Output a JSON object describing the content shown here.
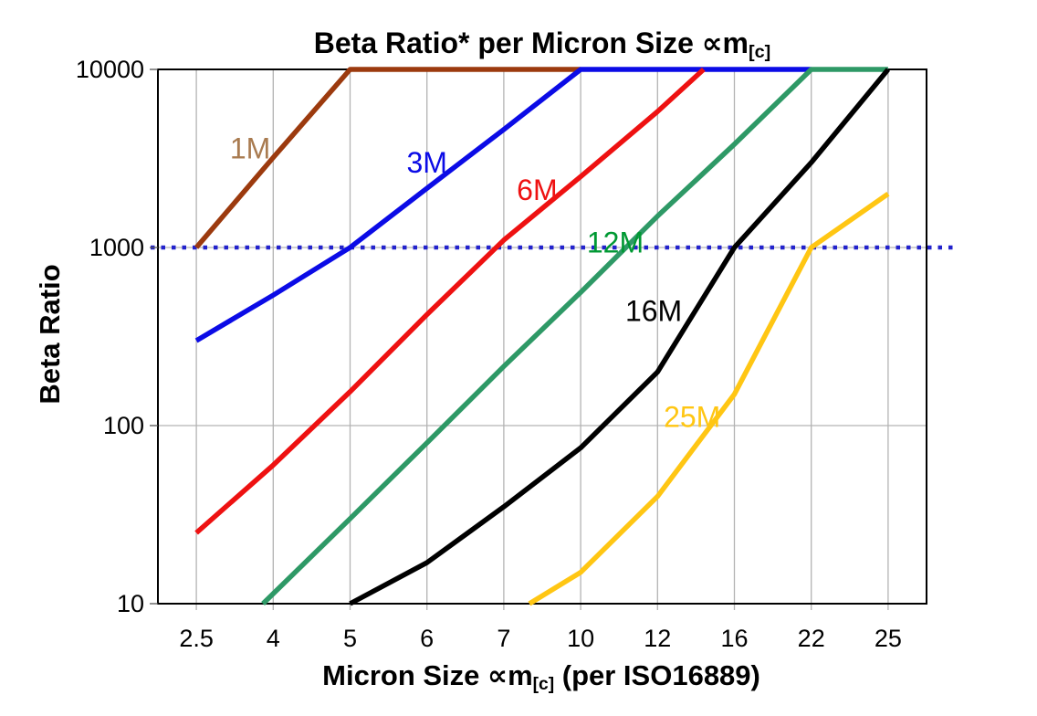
{
  "title": {
    "prefix": "Beta Ratio* per Micron Size ",
    "symbol": "∝m",
    "subscript": "[c]"
  },
  "y_axis": {
    "label": "Beta Ratio",
    "tick_labels": [
      "10000",
      "1000",
      "100",
      "10"
    ],
    "tick_values": [
      10000,
      1000,
      100,
      10
    ]
  },
  "x_axis": {
    "prefix": "Micron Size ",
    "symbol": "∝m",
    "subscript": "[c]",
    "suffix": " (per ISO16889)"
  },
  "chart_data": {
    "type": "line",
    "title": "Beta Ratio* per Micron Size ∝m[c]",
    "xlabel": "Micron Size ∝m[c] (per ISO16889)",
    "ylabel": "Beta Ratio",
    "x_scale": "categorical",
    "y_scale": "log",
    "ylim": [
      10,
      10000
    ],
    "categories": [
      2.5,
      4,
      5,
      6,
      7,
      10,
      12,
      16,
      22,
      25
    ],
    "grid": {
      "vertical": true,
      "horizontal_values": [
        100,
        1000
      ],
      "color": "#b3b3b3"
    },
    "reference_line": {
      "y": 1000,
      "color": "#2222cc",
      "dash": "dotted"
    },
    "series": [
      {
        "name": "1M",
        "color": "#9c3a0e",
        "label": {
          "text": "1M",
          "color": "#a97b50",
          "x": 3.55,
          "y": 3600
        },
        "points": [
          [
            2.5,
            1000
          ],
          [
            4,
            3200
          ],
          [
            5,
            10000
          ],
          [
            10,
            10000
          ]
        ]
      },
      {
        "name": "3M",
        "color": "#0b0be6",
        "label": {
          "text": "3M",
          "color": "#0b0be6",
          "x": 6.0,
          "y": 3000
        },
        "points": [
          [
            2.5,
            300
          ],
          [
            4,
            540
          ],
          [
            5,
            1000
          ],
          [
            6,
            2150
          ],
          [
            7,
            4600
          ],
          [
            10,
            10000
          ],
          [
            22,
            10000
          ]
        ]
      },
      {
        "name": "6M",
        "color": "#ee1111",
        "label": {
          "text": "6M",
          "color": "#ee1111",
          "x": 8.3,
          "y": 2100
        },
        "points": [
          [
            2.5,
            25
          ],
          [
            4,
            60
          ],
          [
            5,
            155
          ],
          [
            6,
            420
          ],
          [
            7,
            1100
          ],
          [
            10,
            2500
          ],
          [
            12,
            5800
          ],
          [
            14.4,
            10000
          ]
        ]
      },
      {
        "name": "12M",
        "color": "#2e9966",
        "label": {
          "text": "12M",
          "color": "#009933",
          "x": 10.9,
          "y": 1070
        },
        "points": [
          [
            3.8,
            10
          ],
          [
            5,
            30
          ],
          [
            6,
            80
          ],
          [
            7,
            215
          ],
          [
            10,
            560
          ],
          [
            12,
            1500
          ],
          [
            16,
            3800
          ],
          [
            22,
            10000
          ],
          [
            25,
            10000
          ]
        ]
      },
      {
        "name": "16M",
        "color": "#000000",
        "label": {
          "text": "16M",
          "color": "#000000",
          "x": 11.9,
          "y": 440
        },
        "points": [
          [
            5,
            10
          ],
          [
            6,
            17
          ],
          [
            7,
            35
          ],
          [
            10,
            75
          ],
          [
            12,
            200
          ],
          [
            16,
            1000
          ],
          [
            22,
            3000
          ],
          [
            25,
            10000
          ]
        ]
      },
      {
        "name": "25M",
        "color": "#ffc613",
        "label": {
          "text": "25M",
          "color": "#ffc613",
          "x": 13.8,
          "y": 112
        },
        "points": [
          [
            8,
            10
          ],
          [
            10,
            15
          ],
          [
            12,
            40
          ],
          [
            16,
            150
          ],
          [
            22,
            1000
          ],
          [
            25,
            2000
          ]
        ]
      }
    ]
  }
}
